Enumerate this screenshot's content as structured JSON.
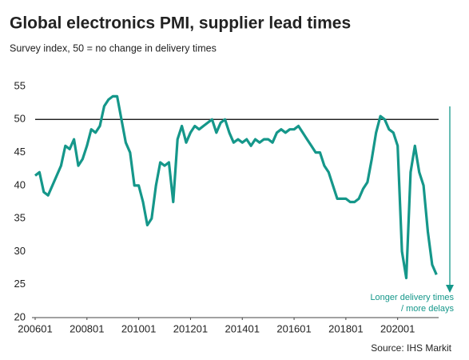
{
  "chart_data": {
    "type": "line",
    "title": "Global electronics PMI, supplier lead times",
    "subtitle": "Survey index, 50 = no change in delivery times",
    "annotation_lines": [
      "Longer delivery times",
      "/ more delays"
    ],
    "source": "Source: IHS Markit",
    "color": "#15978a",
    "hline": 50,
    "x": [
      "2006-01",
      "2006-03",
      "2006-05",
      "2006-07",
      "2006-09",
      "2006-11",
      "2007-01",
      "2007-03",
      "2007-05",
      "2007-07",
      "2007-09",
      "2007-11",
      "2008-01",
      "2008-03",
      "2008-05",
      "2008-07",
      "2008-09",
      "2008-11",
      "2009-01",
      "2009-03",
      "2009-05",
      "2009-07",
      "2009-09",
      "2009-11",
      "2010-01",
      "2010-03",
      "2010-05",
      "2010-07",
      "2010-09",
      "2010-11",
      "2011-01",
      "2011-03",
      "2011-05",
      "2011-07",
      "2011-09",
      "2011-11",
      "2012-01",
      "2012-03",
      "2012-05",
      "2012-07",
      "2012-09",
      "2012-11",
      "2013-01",
      "2013-03",
      "2013-05",
      "2013-07",
      "2013-09",
      "2013-11",
      "2014-01",
      "2014-03",
      "2014-05",
      "2014-07",
      "2014-09",
      "2014-11",
      "2015-01",
      "2015-03",
      "2015-05",
      "2015-07",
      "2015-09",
      "2015-11",
      "2016-01",
      "2016-03",
      "2016-05",
      "2016-07",
      "2016-09",
      "2016-11",
      "2017-01",
      "2017-03",
      "2017-05",
      "2017-07",
      "2017-09",
      "2017-11",
      "2018-01",
      "2018-03",
      "2018-05",
      "2018-07",
      "2018-09",
      "2018-11",
      "2019-01",
      "2019-03",
      "2019-05",
      "2019-07",
      "2019-09",
      "2019-11",
      "2020-01",
      "2020-03",
      "2020-05",
      "2020-07",
      "2020-09",
      "2020-11",
      "2021-01",
      "2021-03",
      "2021-05",
      "2021-07"
    ],
    "values": [
      41.5,
      42,
      39,
      38.5,
      40,
      41.5,
      43,
      46,
      45.5,
      47,
      43,
      44,
      46,
      48.5,
      48,
      49,
      52,
      53,
      53.5,
      53.5,
      50,
      46.5,
      45,
      40,
      40,
      37.5,
      34,
      35,
      40,
      43.5,
      43,
      43.5,
      37.5,
      47,
      49,
      46.5,
      48,
      49,
      48.5,
      49,
      49.5,
      50,
      48,
      49.5,
      50,
      48,
      46.5,
      47,
      46.5,
      47,
      46,
      47,
      46.5,
      47,
      47,
      46.5,
      48,
      48.5,
      48,
      48.5,
      48.5,
      49,
      48,
      47,
      46,
      45,
      45,
      43,
      42,
      40,
      38,
      38,
      38,
      37.5,
      37.5,
      38,
      39.5,
      40.5,
      44,
      48,
      50.5,
      50,
      48.5,
      48,
      46,
      30,
      26,
      42,
      46,
      42,
      40,
      33,
      28,
      26.5
    ],
    "xlim": [
      "2006-01",
      "2021-08"
    ],
    "xticks": [
      {
        "value": "2006-01",
        "label": "200601"
      },
      {
        "value": "2008-01",
        "label": "200801"
      },
      {
        "value": "2010-01",
        "label": "201001"
      },
      {
        "value": "2012-01",
        "label": "201201"
      },
      {
        "value": "2014-01",
        "label": "201401"
      },
      {
        "value": "2016-01",
        "label": "201601"
      },
      {
        "value": "2018-01",
        "label": "201801"
      },
      {
        "value": "2020-01",
        "label": "202001"
      }
    ],
    "ylim": [
      20,
      55
    ],
    "yticks": [
      20,
      25,
      30,
      35,
      40,
      45,
      50,
      55
    ]
  }
}
